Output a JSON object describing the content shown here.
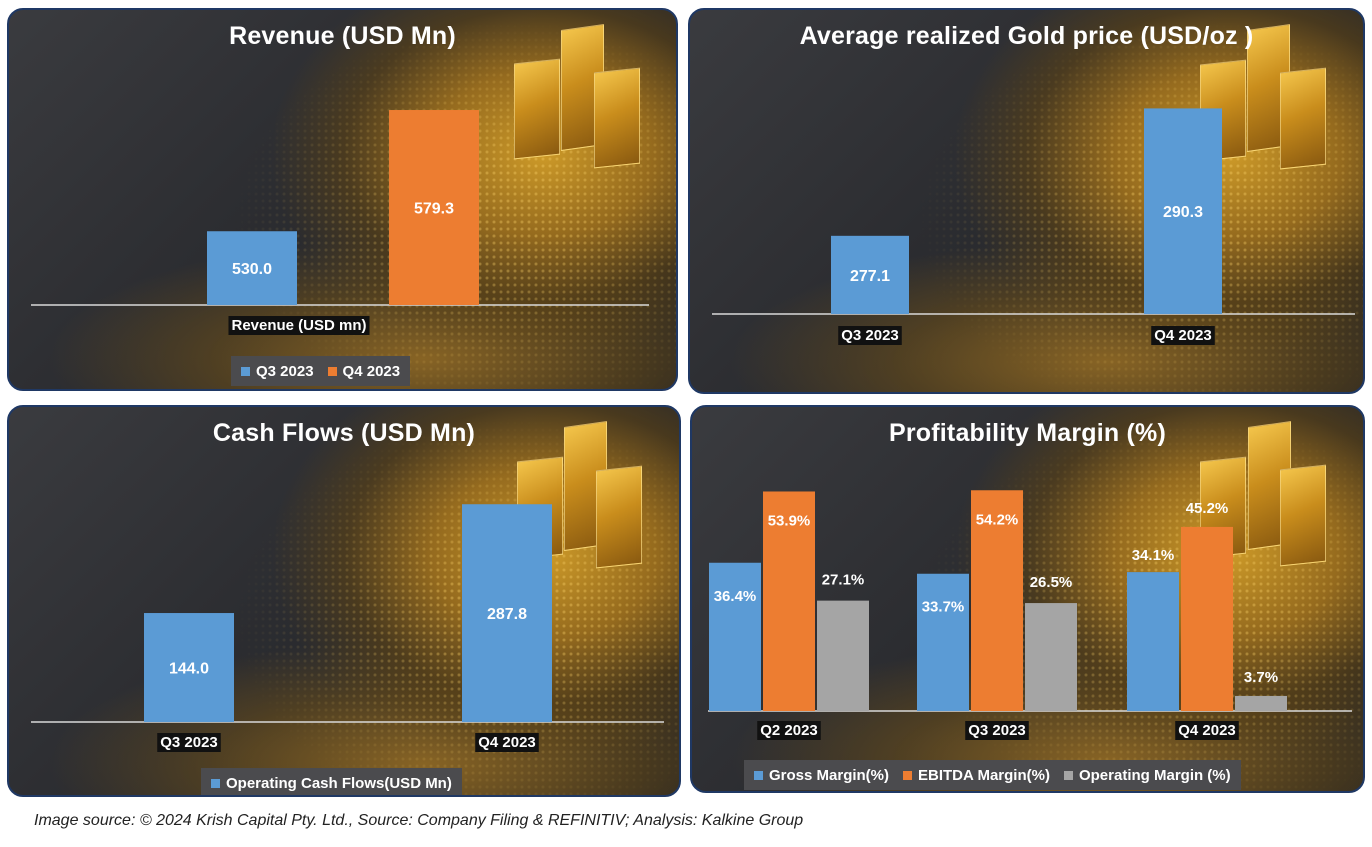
{
  "colors": {
    "blue": "#5b9bd5",
    "orange": "#ed7d31",
    "gray": "#a5a5a5"
  },
  "chart_data": [
    {
      "type": "bar",
      "title": "Revenue (USD Mn)",
      "categories": [
        "Revenue (USD mn)"
      ],
      "series": [
        {
          "name": "Q3 2023",
          "values": [
            530.0
          ],
          "labels": [
            "530.0"
          ],
          "color": "blue"
        },
        {
          "name": "Q4 2023",
          "values": [
            579.3
          ],
          "labels": [
            "579.3"
          ],
          "color": "orange"
        }
      ],
      "ylim": [
        500,
        585
      ]
    },
    {
      "type": "bar",
      "title": "Average realized Gold price (USD/oz )",
      "categories": [
        "Q3 2023",
        "Q4 2023"
      ],
      "series": [
        {
          "name": "",
          "values": [
            277.1,
            290.3
          ],
          "labels": [
            "277.1",
            "290.3"
          ],
          "color": "blue"
        }
      ],
      "ylim": [
        269,
        292
      ]
    },
    {
      "type": "bar",
      "title": "Cash Flows (USD Mn)",
      "categories": [
        "Q3 2023",
        "Q4 2023"
      ],
      "series": [
        {
          "name": "Operating  Cash Flows(USD Mn)",
          "values": [
            144.0,
            287.8
          ],
          "labels": [
            "144.0",
            "287.8"
          ],
          "color": "blue"
        }
      ],
      "ylim": [
        0,
        300
      ]
    },
    {
      "type": "bar",
      "title": "Profitability  Margin (%)",
      "categories": [
        "Q2 2023",
        "Q3 2023",
        "Q4 2023"
      ],
      "series": [
        {
          "name": "Gross Margin(%)",
          "values": [
            36.4,
            33.7,
            34.1
          ],
          "labels": [
            "36.4%",
            "33.7%",
            "34.1%"
          ],
          "color": "blue"
        },
        {
          "name": "EBITDA Margin(%)",
          "values": [
            53.9,
            54.2,
            45.2
          ],
          "labels": [
            "53.9%",
            "54.2%",
            "45.2%"
          ],
          "color": "orange"
        },
        {
          "name": "Operating Margin (%)",
          "values": [
            27.1,
            26.5,
            3.7
          ],
          "labels": [
            "27.1%",
            "26.5%",
            "3.7%"
          ],
          "color": "gray"
        }
      ],
      "ylim": [
        0,
        55
      ]
    }
  ],
  "legends": {
    "revenue": [
      {
        "label": "Q3 2023",
        "color": "blue"
      },
      {
        "label": "Q4 2023",
        "color": "orange"
      }
    ],
    "cash": [
      {
        "label": "Operating  Cash Flows(USD Mn)",
        "color": "blue"
      }
    ],
    "margin": [
      {
        "label": "Gross Margin(%)",
        "color": "blue"
      },
      {
        "label": "EBITDA Margin(%)",
        "color": "orange"
      },
      {
        "label": "Operating Margin (%)",
        "color": "gray"
      }
    ]
  },
  "footer": "Image source: © 2024 Krish Capital Pty. Ltd., Source: Company Filing & REFINITIV; Analysis: Kalkine Group"
}
